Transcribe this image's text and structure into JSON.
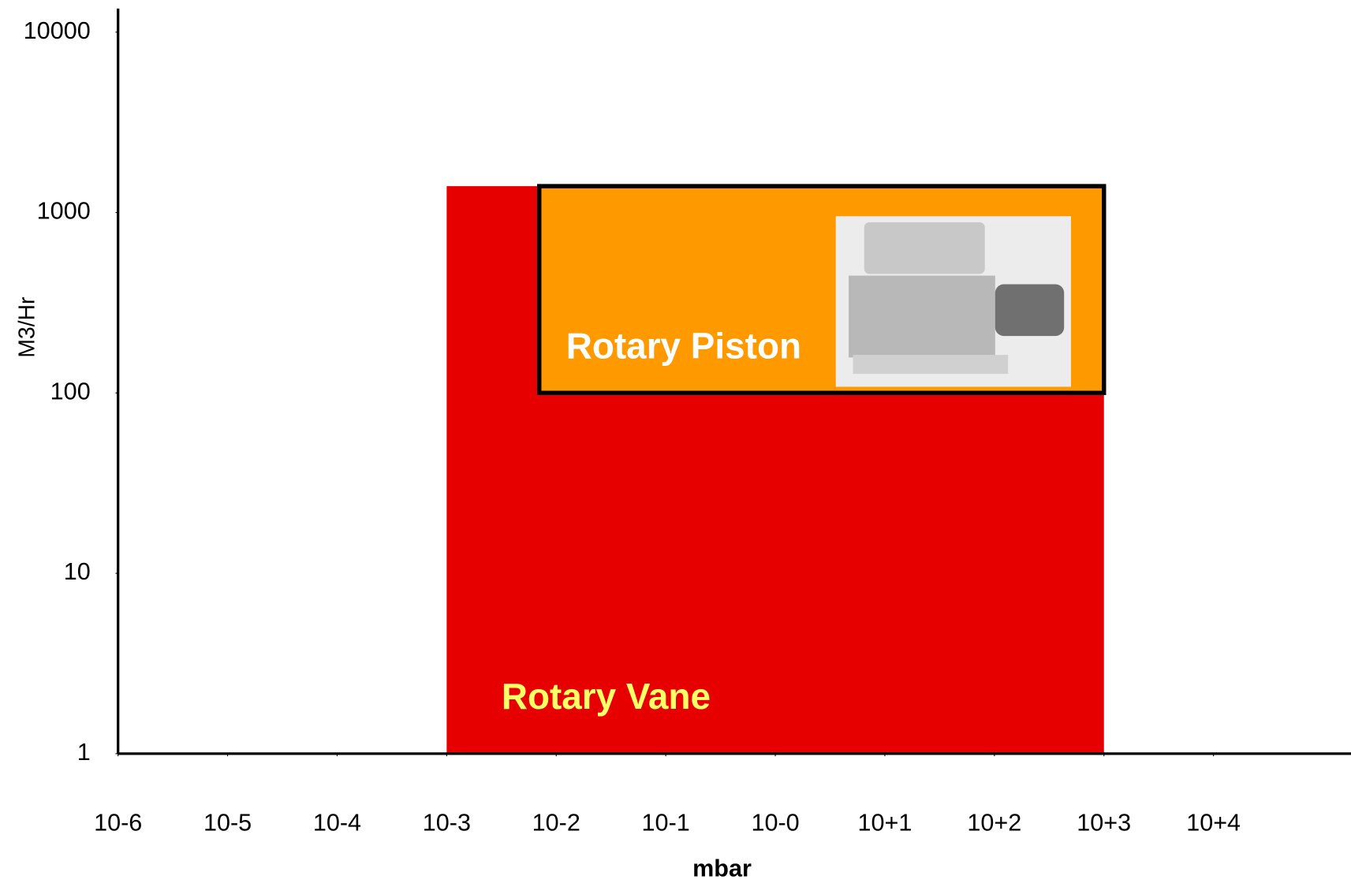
{
  "chart_data": {
    "type": "range",
    "xlabel": "mbar",
    "ylabel": "M3/Hr",
    "xscale": "log",
    "yscale": "log",
    "xlim": [
      1e-06,
      180000
    ],
    "ylim": [
      1,
      13500
    ],
    "xticks": [
      {
        "value": 1e-06,
        "label": "10-6"
      },
      {
        "value": 1e-05,
        "label": "10-5"
      },
      {
        "value": 0.0001,
        "label": "10-4"
      },
      {
        "value": 0.001,
        "label": "10-3"
      },
      {
        "value": 0.01,
        "label": "10-2"
      },
      {
        "value": 0.1,
        "label": "10-1"
      },
      {
        "value": 1,
        "label": "10-0"
      },
      {
        "value": 10,
        "label": "10+1"
      },
      {
        "value": 100,
        "label": "10+2"
      },
      {
        "value": 1000,
        "label": "10+3"
      },
      {
        "value": 10000,
        "label": "10+4"
      }
    ],
    "yticks": [
      1,
      10,
      100,
      1000,
      10000
    ],
    "series": [
      {
        "name": "Rotary Vane",
        "color": "#e60000",
        "label_color": "#ffff66",
        "outline": false,
        "x": [
          0.001,
          1000
        ],
        "values": [
          1,
          1400
        ]
      },
      {
        "name": "Rotary Piston",
        "color": "#ff9900",
        "label_color": "#ffffff",
        "outline": true,
        "x": [
          0.007,
          1000
        ],
        "values": [
          100,
          1400
        ]
      }
    ]
  }
}
